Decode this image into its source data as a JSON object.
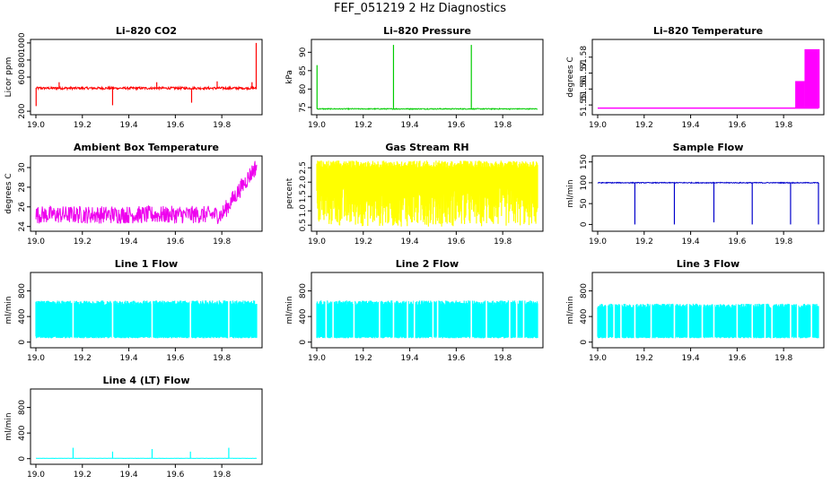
{
  "page": {
    "title": "FEF_051219  2 Hz Diagnostics"
  },
  "chart_data": [
    {
      "id": "co2",
      "type": "line",
      "title": "Li–820 CO2",
      "ylabel": "Licor ppm",
      "color": "#ff0000",
      "xlim": [
        19.0,
        19.95
      ],
      "ylim": [
        180,
        1020
      ],
      "xticks": [
        19.0,
        19.2,
        19.4,
        19.6,
        19.8
      ],
      "xtick_labels": [
        "19.0",
        "19.2",
        "19.4",
        "19.6",
        "19.8"
      ],
      "yticks": [
        200,
        600,
        800,
        1000
      ],
      "ytick_labels": [
        "200",
        "600",
        "800",
        "1000"
      ],
      "series": [
        {
          "name": "CO2",
          "base": 470,
          "noise": 28,
          "spikes": [
            {
              "x": 19.001,
              "y": 260
            },
            {
              "x": 19.1,
              "y": 540
            },
            {
              "x": 19.33,
              "y": 270
            },
            {
              "x": 19.52,
              "y": 540
            },
            {
              "x": 19.67,
              "y": 300
            },
            {
              "x": 19.78,
              "y": 550
            },
            {
              "x": 19.93,
              "y": 540
            },
            {
              "x": 19.948,
              "y": 1000
            }
          ]
        }
      ]
    },
    {
      "id": "pressure",
      "type": "line",
      "title": "Li–820 Pressure",
      "ylabel": "kPa",
      "color": "#00cc00",
      "xlim": [
        19.0,
        19.95
      ],
      "ylim": [
        73.5,
        93
      ],
      "xticks": [
        19.0,
        19.2,
        19.4,
        19.6,
        19.8
      ],
      "xtick_labels": [
        "19.0",
        "19.2",
        "19.4",
        "19.6",
        "19.8"
      ],
      "yticks": [
        75,
        80,
        85,
        90
      ],
      "ytick_labels": [
        "75",
        "80",
        "85",
        "90"
      ],
      "series": [
        {
          "name": "Pressure",
          "base": 74.6,
          "noise": 0.25,
          "spikes": [
            {
              "x": 19.001,
              "y": 86.5
            },
            {
              "x": 19.33,
              "y": 92
            },
            {
              "x": 19.665,
              "y": 92
            }
          ]
        }
      ]
    },
    {
      "id": "li820-temp",
      "type": "area",
      "title": "Li–820 Temperature",
      "ylabel": "degrees C",
      "color": "#ff00ff",
      "xlim": [
        19.0,
        19.95
      ],
      "ylim": [
        51.545,
        51.59
      ],
      "xticks": [
        19.0,
        19.2,
        19.4,
        19.6,
        19.8
      ],
      "xtick_labels": [
        "19.0",
        "19.2",
        "19.4",
        "19.6",
        "19.8"
      ],
      "yticks": [
        51.55,
        51.56,
        51.57,
        51.58
      ],
      "ytick_labels": [
        "51.55",
        "51.56",
        "51.57",
        "51.58"
      ],
      "series": [
        {
          "name": "Temperature",
          "base": 51.548,
          "steps": [
            {
              "x0": 19.85,
              "x1": 19.89,
              "low": 51.548,
              "high": 51.565
            },
            {
              "x0": 19.89,
              "x1": 19.955,
              "low": 51.548,
              "high": 51.585
            }
          ]
        }
      ]
    },
    {
      "id": "box-temp",
      "type": "line",
      "title": "Ambient Box Temperature",
      "ylabel": "degrees C",
      "color": "#ee00ee",
      "xlim": [
        19.0,
        19.95
      ],
      "ylim": [
        23.7,
        31
      ],
      "xticks": [
        19.0,
        19.2,
        19.4,
        19.6,
        19.8
      ],
      "xtick_labels": [
        "19.0",
        "19.2",
        "19.4",
        "19.6",
        "19.8"
      ],
      "yticks": [
        24,
        26,
        28,
        30
      ],
      "ytick_labels": [
        "24",
        "26",
        "28",
        "30"
      ],
      "series": [
        {
          "name": "Box temperature",
          "base": 25.2,
          "noise": 0.9,
          "rise": {
            "x0": 19.8,
            "x1": 19.95,
            "y1": 30.2
          }
        }
      ]
    },
    {
      "id": "rh",
      "type": "line",
      "title": "Gas Stream RH",
      "ylabel": "percent",
      "color": "#ffff00",
      "xlim": [
        19.0,
        19.95
      ],
      "ylim": [
        0.35,
        2.85
      ],
      "xticks": [
        19.0,
        19.2,
        19.4,
        19.6,
        19.8
      ],
      "xtick_labels": [
        "19.0",
        "19.2",
        "19.4",
        "19.6",
        "19.8"
      ],
      "yticks": [
        0.5,
        1.0,
        1.5,
        2.0,
        2.5
      ],
      "ytick_labels": [
        "0.5",
        "1.0",
        "1.5",
        "2.0",
        "2.5"
      ],
      "series": [
        {
          "name": "RH",
          "base": 1.9,
          "noise": 0.45,
          "band": [
            0.45,
            2.75
          ]
        }
      ]
    },
    {
      "id": "sample-flow",
      "type": "line",
      "title": "Sample Flow",
      "ylabel": "ml/min",
      "color": "#0000cc",
      "xlim": [
        19.0,
        19.95
      ],
      "ylim": [
        -12,
        160
      ],
      "xticks": [
        19.0,
        19.2,
        19.4,
        19.6,
        19.8
      ],
      "xtick_labels": [
        "19.0",
        "19.2",
        "19.4",
        "19.6",
        "19.8"
      ],
      "yticks": [
        0,
        50,
        100,
        150
      ],
      "ytick_labels": [
        "0",
        "50",
        "100",
        "150"
      ],
      "series": [
        {
          "name": "Sample flow",
          "base": 100,
          "noise": 2,
          "spikes": [
            {
              "x": 19.16,
              "y": 0
            },
            {
              "x": 19.33,
              "y": 0
            },
            {
              "x": 19.5,
              "y": 5
            },
            {
              "x": 19.665,
              "y": 0
            },
            {
              "x": 19.83,
              "y": 0
            },
            {
              "x": 19.95,
              "y": 0
            }
          ]
        }
      ]
    },
    {
      "id": "line1",
      "type": "line",
      "title": "Line 1 Flow",
      "ylabel": "ml/min",
      "color": "#00ffff",
      "xlim": [
        19.0,
        19.95
      ],
      "ylim": [
        -60,
        1060
      ],
      "xticks": [
        19.0,
        19.2,
        19.4,
        19.6,
        19.8
      ],
      "xtick_labels": [
        "19.0",
        "19.2",
        "19.4",
        "19.6",
        "19.8"
      ],
      "yticks": [
        0,
        400,
        800
      ],
      "ytick_labels": [
        "0",
        "400",
        "800"
      ],
      "series": [
        {
          "name": "Line 1",
          "band": [
            60,
            650
          ],
          "gaps": [
            19.16,
            19.33,
            19.5,
            19.665,
            19.83
          ]
        }
      ]
    },
    {
      "id": "line2",
      "type": "line",
      "title": "Line 2 Flow",
      "ylabel": "ml/min",
      "color": "#00ffff",
      "xlim": [
        19.0,
        19.95
      ],
      "ylim": [
        -60,
        1060
      ],
      "xticks": [
        19.0,
        19.2,
        19.4,
        19.6,
        19.8
      ],
      "xtick_labels": [
        "19.0",
        "19.2",
        "19.4",
        "19.6",
        "19.8"
      ],
      "yticks": [
        0,
        400,
        800
      ],
      "ytick_labels": [
        "0",
        "400",
        "800"
      ],
      "series": [
        {
          "name": "Line 2",
          "band": [
            60,
            650
          ],
          "gaps": [
            19.04,
            19.07,
            19.16,
            19.27,
            19.33,
            19.39,
            19.42,
            19.5,
            19.52,
            19.665,
            19.73,
            19.83,
            19.86,
            19.89
          ]
        }
      ]
    },
    {
      "id": "line3",
      "type": "line",
      "title": "Line 3 Flow",
      "ylabel": "ml/min",
      "color": "#00ffff",
      "xlim": [
        19.0,
        19.95
      ],
      "ylim": [
        -60,
        1060
      ],
      "xticks": [
        19.0,
        19.2,
        19.4,
        19.6,
        19.8
      ],
      "xtick_labels": [
        "19.0",
        "19.2",
        "19.4",
        "19.6",
        "19.8"
      ],
      "yticks": [
        0,
        400,
        800
      ],
      "ytick_labels": [
        "0",
        "400",
        "800"
      ],
      "series": [
        {
          "name": "Line 3",
          "band": [
            60,
            600
          ],
          "gaps": [
            19.04,
            19.07,
            19.1,
            19.16,
            19.23,
            19.33,
            19.39,
            19.45,
            19.5,
            19.6,
            19.665,
            19.72,
            19.75,
            19.83,
            19.86,
            19.92
          ]
        }
      ]
    },
    {
      "id": "line4",
      "type": "line",
      "title": "Line 4 (LT) Flow",
      "ylabel": "ml/min",
      "color": "#00ffff",
      "xlim": [
        19.0,
        19.95
      ],
      "ylim": [
        -60,
        1060
      ],
      "xticks": [
        19.0,
        19.2,
        19.4,
        19.6,
        19.8
      ],
      "xtick_labels": [
        "19.0",
        "19.2",
        "19.4",
        "19.6",
        "19.8"
      ],
      "yticks": [
        0,
        400,
        800
      ],
      "ytick_labels": [
        "0",
        "400",
        "800"
      ],
      "series": [
        {
          "name": "Line 4",
          "base": 5,
          "noise": 3,
          "spikes": [
            {
              "x": 19.16,
              "y": 170
            },
            {
              "x": 19.33,
              "y": 110
            },
            {
              "x": 19.5,
              "y": 150
            },
            {
              "x": 19.665,
              "y": 110
            },
            {
              "x": 19.83,
              "y": 170
            }
          ]
        }
      ]
    }
  ]
}
